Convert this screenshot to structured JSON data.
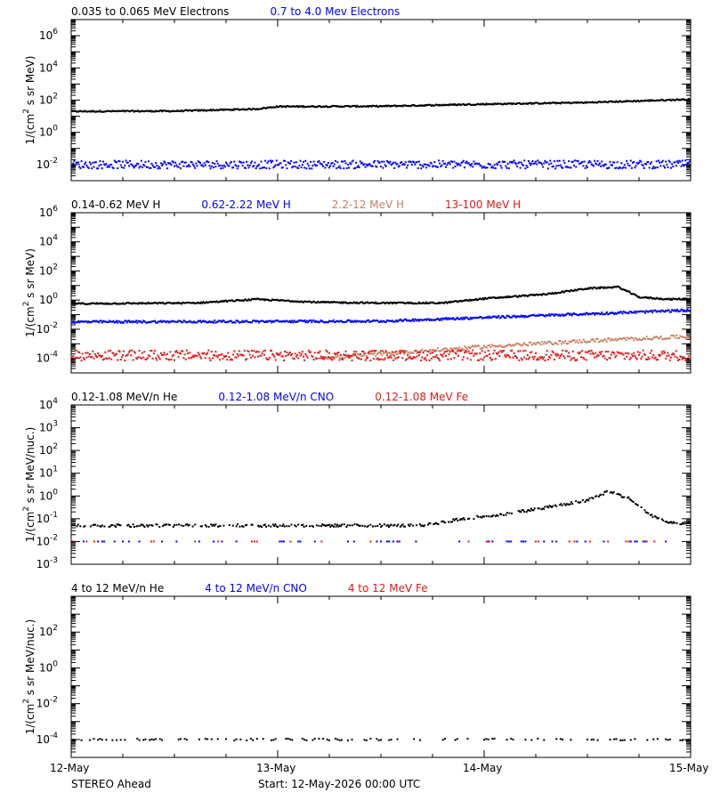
{
  "chart_data": [
    {
      "type": "scatter",
      "ylabel_html": "1/(cm² s sr MeV)",
      "ylabel_parts": [
        "1/(cm",
        "2",
        " s sr MeV)"
      ],
      "yscale": "log",
      "ylim_exp": [
        -3,
        7
      ],
      "yticks": [
        {
          "base": "10",
          "exp": "6",
          "value": 1000000
        },
        {
          "base": "10",
          "exp": "4",
          "value": 10000
        },
        {
          "base": "10",
          "exp": "2",
          "value": 100
        },
        {
          "base": "10",
          "exp": "0",
          "value": 1
        },
        {
          "base": "10",
          "exp": "-2",
          "value": 0.01
        }
      ],
      "legend": [
        {
          "name": "0.035 to 0.065 MeV Electrons",
          "color": "#000000"
        },
        {
          "name": "0.7 to 4.0 Mev Electrons",
          "color": "#0000ff"
        }
      ],
      "series": [
        {
          "color": "#000000",
          "profile": [
            [
              0,
              1.3
            ],
            [
              0.5,
              1.32
            ],
            [
              0.9,
              1.45
            ],
            [
              1.0,
              1.6
            ],
            [
              1.5,
              1.62
            ],
            [
              2.0,
              1.75
            ],
            [
              2.5,
              1.85
            ],
            [
              3.0,
              2.05
            ]
          ],
          "scatter": 0.04,
          "density": 1.0,
          "gaps": 0.0
        },
        {
          "color": "#0000ff",
          "profile": [
            [
              0,
              -2.0
            ],
            [
              3.0,
              -2.0
            ]
          ],
          "scatter": 0.25,
          "density": 1.0,
          "gaps": 0.0
        }
      ]
    },
    {
      "type": "scatter",
      "ylabel_parts": [
        "1/(cm",
        "2",
        " s sr MeV)"
      ],
      "yscale": "log",
      "ylim_exp": [
        -5,
        6
      ],
      "yticks": [
        {
          "base": "10",
          "exp": "6",
          "value": 1000000
        },
        {
          "base": "10",
          "exp": "4",
          "value": 10000
        },
        {
          "base": "10",
          "exp": "2",
          "value": 100
        },
        {
          "base": "10",
          "exp": "0",
          "value": 1
        },
        {
          "base": "10",
          "exp": "-2",
          "value": 0.01
        },
        {
          "base": "10",
          "exp": "-4",
          "value": 0.0001
        }
      ],
      "legend": [
        {
          "name": "0.14-0.62 MeV H",
          "color": "#000000"
        },
        {
          "name": "0.62-2.22 MeV H",
          "color": "#0000ff"
        },
        {
          "name": "2.2-12 MeV H",
          "color": "#c87f62"
        },
        {
          "name": "13-100 MeV H",
          "color": "#e11919"
        }
      ],
      "series": [
        {
          "color": "#000000",
          "profile": [
            [
              0,
              -0.25
            ],
            [
              0.6,
              -0.2
            ],
            [
              0.9,
              0.05
            ],
            [
              1.2,
              -0.15
            ],
            [
              1.5,
              -0.2
            ],
            [
              1.8,
              -0.2
            ],
            [
              2.0,
              0.1
            ],
            [
              2.3,
              0.4
            ],
            [
              2.5,
              0.8
            ],
            [
              2.65,
              0.9
            ],
            [
              2.75,
              0.2
            ],
            [
              2.9,
              0.05
            ],
            [
              3.0,
              0.1
            ]
          ],
          "scatter": 0.05,
          "density": 1.0,
          "gaps": 0.0
        },
        {
          "color": "#0000ff",
          "profile": [
            [
              0,
              -1.5
            ],
            [
              1.5,
              -1.45
            ],
            [
              2.0,
              -1.2
            ],
            [
              3.0,
              -0.7
            ]
          ],
          "scatter": 0.08,
          "density": 1.0,
          "gaps": 0.0
        },
        {
          "color": "#c87f62",
          "profile": [
            [
              1.2,
              -4.0
            ],
            [
              1.6,
              -3.6
            ],
            [
              2.0,
              -3.2
            ],
            [
              2.5,
              -2.8
            ],
            [
              3.0,
              -2.5
            ]
          ],
          "scatter": 0.12,
          "density": 0.8,
          "gaps": 0.0
        },
        {
          "color": "#e11919",
          "profile": [
            [
              0,
              -3.8
            ],
            [
              3.0,
              -3.8
            ]
          ],
          "scatter": 0.35,
          "density": 1.0,
          "gaps": 0.0
        }
      ]
    },
    {
      "type": "scatter",
      "ylabel_parts": [
        "1/(cm",
        "2",
        " s sr MeV/nuc.)"
      ],
      "yscale": "log",
      "ylim_exp": [
        -3,
        4
      ],
      "yticks": [
        {
          "base": "10",
          "exp": "4",
          "value": 10000
        },
        {
          "base": "10",
          "exp": "3",
          "value": 1000
        },
        {
          "base": "10",
          "exp": "2",
          "value": 100
        },
        {
          "base": "10",
          "exp": "1",
          "value": 10
        },
        {
          "base": "10",
          "exp": "0",
          "value": 1
        },
        {
          "base": "10",
          "exp": "-1",
          "value": 0.1
        },
        {
          "base": "10",
          "exp": "-2",
          "value": 0.01
        },
        {
          "base": "10",
          "exp": "-3",
          "value": 0.001
        }
      ],
      "legend": [
        {
          "name": "0.12-1.08 MeV/n He",
          "color": "#000000"
        },
        {
          "name": "0.12-1.08 MeV/n CNO",
          "color": "#0000ff"
        },
        {
          "name": "0.12-1.08 MeV Fe",
          "color": "#e11919"
        }
      ],
      "series": [
        {
          "color": "#000000",
          "profile": [
            [
              0,
              -1.3
            ],
            [
              1.7,
              -1.3
            ],
            [
              1.9,
              -1.0
            ],
            [
              2.1,
              -0.8
            ],
            [
              2.3,
              -0.5
            ],
            [
              2.5,
              -0.2
            ],
            [
              2.6,
              0.2
            ],
            [
              2.7,
              -0.1
            ],
            [
              2.8,
              -0.8
            ],
            [
              2.9,
              -1.2
            ],
            [
              3.0,
              -1.2
            ]
          ],
          "scatter": 0.06,
          "density": 0.9,
          "gaps": 0.35
        },
        {
          "color": "#0000ff",
          "profile": [
            [
              0,
              -2.0
            ],
            [
              3.0,
              -2.0
            ]
          ],
          "scatter": 0.0,
          "density": 0.5,
          "gaps": 0.85
        },
        {
          "color": "#e11919",
          "profile": [
            [
              0,
              -2.0
            ],
            [
              3.0,
              -2.0
            ]
          ],
          "scatter": 0.0,
          "density": 0.4,
          "gaps": 0.9
        }
      ]
    },
    {
      "type": "scatter",
      "ylabel_parts": [
        "1/(cm",
        "2",
        " s sr MeV/nuc.)"
      ],
      "yscale": "log",
      "ylim_exp": [
        -5,
        4
      ],
      "yticks": [
        {
          "base": "10",
          "exp": "2",
          "value": 100
        },
        {
          "base": "10",
          "exp": "0",
          "value": 1
        },
        {
          "base": "10",
          "exp": "-2",
          "value": 0.01
        },
        {
          "base": "10",
          "exp": "-4",
          "value": 0.0001
        }
      ],
      "legend": [
        {
          "name": "4 to 12 MeV/n He",
          "color": "#000000"
        },
        {
          "name": "4 to 12 MeV/n CNO",
          "color": "#0000ff"
        },
        {
          "name": "4 to 12 MeV Fe",
          "color": "#e11919"
        }
      ],
      "series": [
        {
          "color": "#000000",
          "profile": [
            [
              0,
              -4.0
            ],
            [
              3.0,
              -4.0
            ]
          ],
          "scatter": 0.05,
          "density": 0.5,
          "gaps": 0.6
        }
      ]
    }
  ],
  "x_axis": {
    "range_days": [
      0,
      3
    ],
    "ticks": [
      {
        "value": 0,
        "label": "12-May"
      },
      {
        "value": 1,
        "label": "13-May"
      },
      {
        "value": 2,
        "label": "14-May"
      },
      {
        "value": 3,
        "label": "15-May"
      }
    ]
  },
  "footer": {
    "spacecraft": "STEREO Ahead",
    "start": "Start: 12-May-2026 00:00 UTC"
  }
}
